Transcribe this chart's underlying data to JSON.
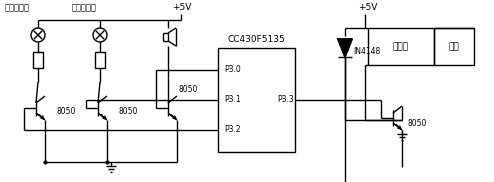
{
  "bg": "#ffffff",
  "lc": "#000000",
  "lw": 1.0,
  "labels": {
    "red_led": "红色指示灯",
    "green_led": "绿色指示灯",
    "vcc1": "+5V",
    "vcc2": "+5V",
    "chip": "CC430F5135",
    "p30": "P3.0",
    "p31": "P3.1",
    "p32": "P3.2",
    "p33": "P3.3",
    "relay": "继电器",
    "door": "房门",
    "diode": "IN4148",
    "t1": "8050",
    "t2": "8050",
    "t3": "8050",
    "t4": "8050"
  },
  "fs": 6.0,
  "fs_label": 6.5
}
